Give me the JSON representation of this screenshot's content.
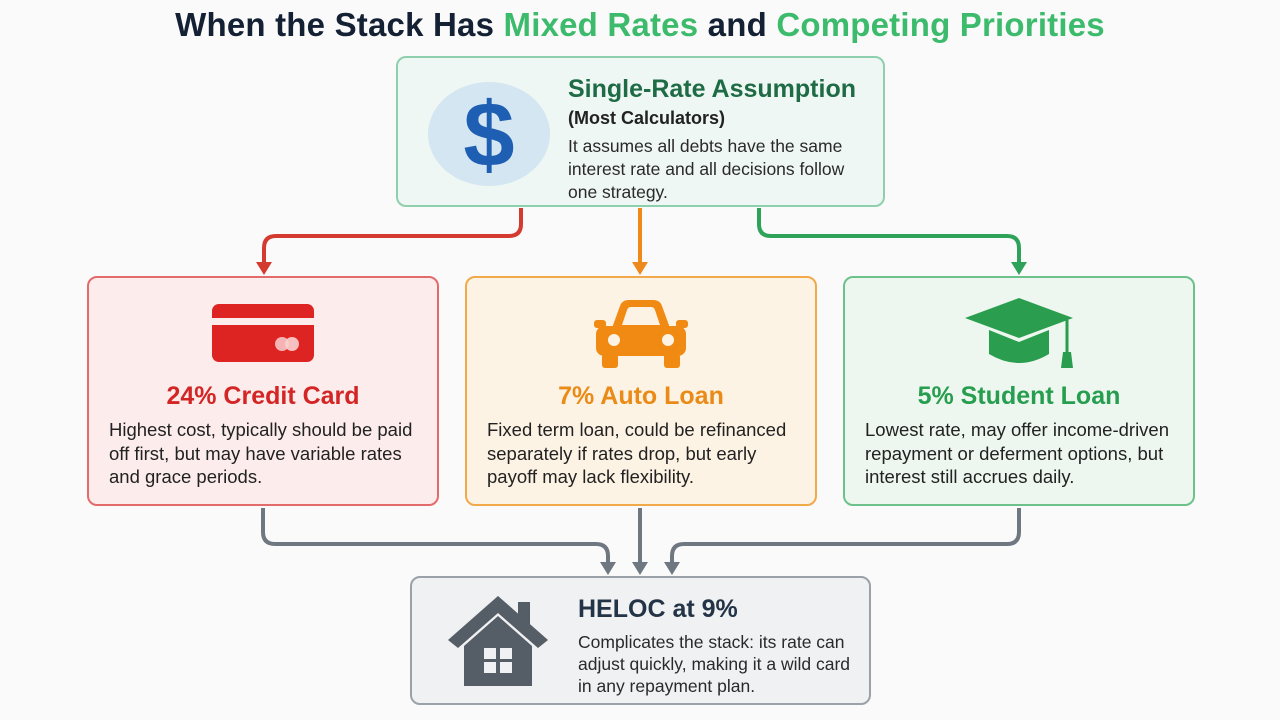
{
  "title": {
    "part1": "When the Stack Has ",
    "highlight1": "Mixed Rates",
    "part2": " and ",
    "highlight2": "Competing Priorities"
  },
  "top": {
    "heading": "Single-Rate Assumption",
    "subheading": "(Most Calculators)",
    "body": "It assumes all debts have the same interest rate and all decisions follow one strategy.",
    "icon": "dollar-sign-icon"
  },
  "cards": [
    {
      "heading": "24% Credit Card",
      "body": "Highest cost, typically should be paid off first, but may have variable rates and grace periods.",
      "icon": "credit-card-icon",
      "color": "#d42525"
    },
    {
      "heading": "7% Auto Loan",
      "body": "Fixed term loan, could be refinanced separately if rates drop, but early payoff may lack flexibility.",
      "icon": "car-icon",
      "color": "#ea8a17"
    },
    {
      "heading": "5% Student Loan",
      "body": "Lowest rate, may offer income-driven repayment or deferment options, but interest still accrues daily.",
      "icon": "graduation-cap-icon",
      "color": "#279e4f"
    }
  ],
  "bottom": {
    "heading": "HELOC at 9%",
    "body": "Complicates the stack: its rate can adjust quickly, making it a wild card in any repayment plan.",
    "icon": "house-icon"
  }
}
